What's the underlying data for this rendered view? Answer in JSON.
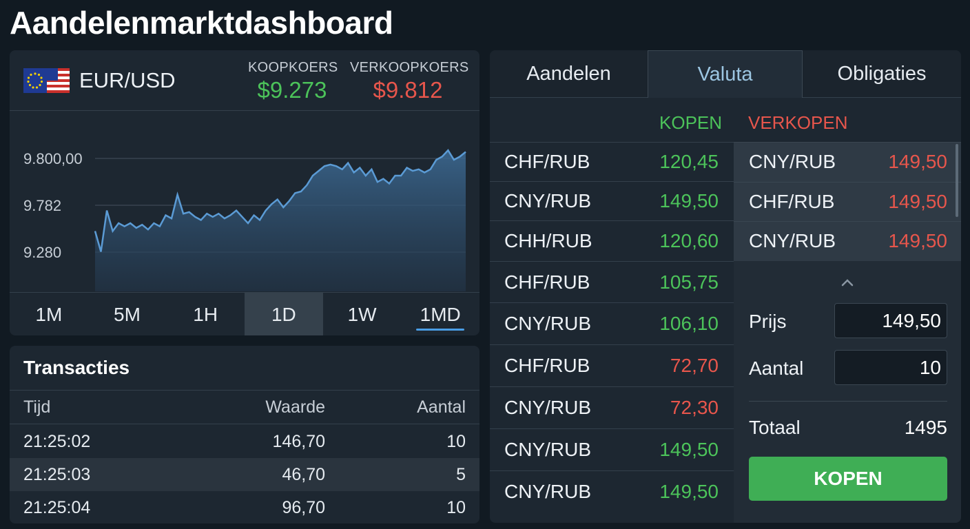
{
  "app": {
    "title": "Aandelenmarktdashboard"
  },
  "pair_panel": {
    "pair": "EUR/USD",
    "flag_icon": "eu-us-flag-icon",
    "buy_label": "KOOPKOERS",
    "buy_value": "$9.273",
    "sell_label": "VERKOOPKOERS",
    "sell_value": "$9.812",
    "timeframes": [
      "1M",
      "5M",
      "1H",
      "1D",
      "1W",
      "1MD"
    ],
    "active_timeframe": "1D"
  },
  "chart_data": {
    "type": "area",
    "title": "",
    "xlabel": "",
    "ylabel": "",
    "y_tick_labels": [
      "9.800,00",
      "9.782",
      "9.280"
    ],
    "grid": true,
    "color": "#5b9bd5",
    "series": [
      {
        "values": [
          0.55,
          0.42,
          0.68,
          0.55,
          0.6,
          0.58,
          0.6,
          0.57,
          0.59,
          0.56,
          0.6,
          0.58,
          0.65,
          0.63,
          0.78,
          0.66,
          0.67,
          0.64,
          0.62,
          0.66,
          0.64,
          0.66,
          0.63,
          0.65,
          0.68,
          0.64,
          0.6,
          0.65,
          0.62,
          0.68,
          0.72,
          0.75,
          0.7,
          0.74,
          0.79,
          0.8,
          0.84,
          0.9,
          0.93,
          0.96,
          0.97,
          0.96,
          0.94,
          0.98,
          0.92,
          0.95,
          0.9,
          0.94,
          0.86,
          0.88,
          0.85,
          0.9,
          0.9,
          0.95,
          0.93,
          0.94,
          0.92,
          0.94,
          1.0,
          1.02,
          1.06,
          1.0,
          1.02,
          1.05
        ]
      }
    ]
  },
  "transactions": {
    "title": "Transacties",
    "columns": [
      "Tijd",
      "Waarde",
      "Aantal"
    ],
    "rows": [
      {
        "time": "21:25:02",
        "value": "146,70",
        "qty": "10"
      },
      {
        "time": "21:25:03",
        "value": "46,70",
        "qty": "5"
      },
      {
        "time": "21:25:04",
        "value": "96,70",
        "qty": "10"
      }
    ]
  },
  "market": {
    "tabs": [
      "Aandelen",
      "Valuta",
      "Obligaties"
    ],
    "active_tab": "Valuta",
    "buy_heading": "KOPEN",
    "sell_heading": "VERKOPEN",
    "buy_rows": [
      {
        "pair": "CHF/RUB",
        "price": "120,45",
        "color": "green"
      },
      {
        "pair": "CNY/RUB",
        "price": "149,50",
        "color": "green"
      },
      {
        "pair": "CHH/RUB",
        "price": "120,60",
        "color": "green"
      },
      {
        "pair": "CHF/RUB",
        "price": "105,75",
        "color": "green"
      },
      {
        "pair": "CNY/RUB",
        "price": "106,10",
        "color": "green"
      },
      {
        "pair": "CHF/RUB",
        "price": "72,70",
        "color": "red"
      },
      {
        "pair": "CNY/RUB",
        "price": "72,30",
        "color": "red"
      },
      {
        "pair": "CNY/RUB",
        "price": "149,50",
        "color": "green"
      },
      {
        "pair": "CNY/RUB",
        "price": "149,50",
        "color": "green"
      }
    ],
    "sell_rows": [
      {
        "pair": "CNY/RUB",
        "price": "149,50"
      },
      {
        "pair": "CHF/RUB",
        "price": "149,50"
      },
      {
        "pair": "CNY/RUB",
        "price": "149,50"
      }
    ]
  },
  "order": {
    "price_label": "Prijs",
    "price_value": "149,50",
    "qty_label": "Aantal",
    "qty_value": "10",
    "total_label": "Totaal",
    "total_value": "1495",
    "button_label": "KOPEN"
  },
  "colors": {
    "green": "#4cc35a",
    "red": "#e7564c",
    "accent": "#4a9ee6",
    "button": "#3fae55"
  }
}
